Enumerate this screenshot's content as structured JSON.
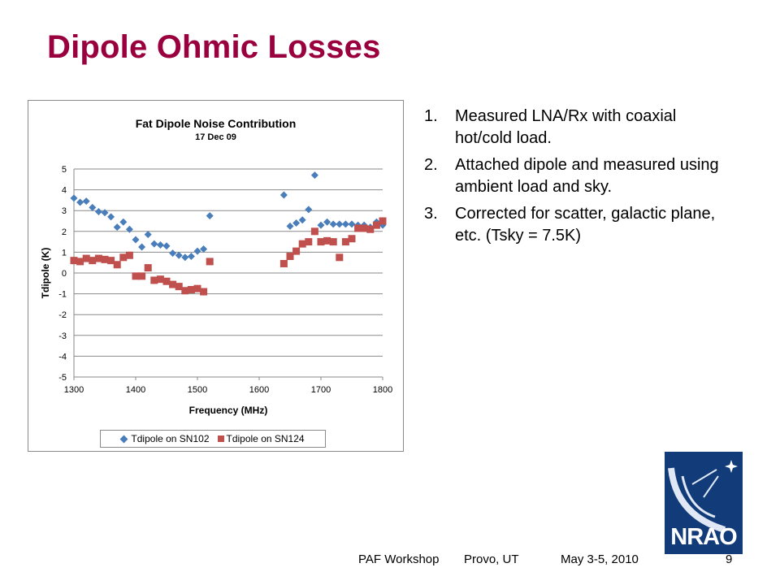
{
  "slide": {
    "title": "Dipole Ohmic Losses",
    "steps": [
      {
        "num": "1.",
        "text": "Measured LNA/Rx with coaxial hot/cold load."
      },
      {
        "num": "2.",
        "text": "Attached dipole and measured using ambient load and sky."
      },
      {
        "num": "3.",
        "text": "Corrected for scatter, galactic plane, etc.  (Tsky = 7.5K)"
      }
    ],
    "footer": {
      "workshop": "PAF Workshop",
      "location": "Provo, UT",
      "date": "May 3-5, 2010",
      "page": "9"
    },
    "logo": {
      "text": "NRAO"
    }
  },
  "chart_data": {
    "type": "scatter",
    "title": "Fat Dipole Noise Contribution",
    "subtitle": "17 Dec 09",
    "xlabel": "Frequency (MHz)",
    "ylabel": "Tdipole  (K)",
    "xlim": [
      1300,
      1800
    ],
    "ylim": [
      -5,
      5
    ],
    "xticks": [
      1300,
      1400,
      1500,
      1600,
      1700,
      1800
    ],
    "yticks": [
      5,
      4,
      3,
      2,
      1,
      0,
      -1,
      -2,
      -3,
      -4,
      -5
    ],
    "grid": "horizontal",
    "legend": "bottom",
    "series": [
      {
        "name": "Tdipole on SN102",
        "color": "#4a7ebb",
        "marker": "diamond",
        "points": [
          [
            1300,
            3.6
          ],
          [
            1310,
            3.4
          ],
          [
            1320,
            3.45
          ],
          [
            1330,
            3.15
          ],
          [
            1340,
            2.95
          ],
          [
            1350,
            2.9
          ],
          [
            1360,
            2.7
          ],
          [
            1370,
            2.2
          ],
          [
            1380,
            2.45
          ],
          [
            1390,
            2.1
          ],
          [
            1400,
            1.6
          ],
          [
            1410,
            1.25
          ],
          [
            1420,
            1.85
          ],
          [
            1430,
            1.4
          ],
          [
            1440,
            1.35
          ],
          [
            1450,
            1.3
          ],
          [
            1460,
            0.95
          ],
          [
            1470,
            0.85
          ],
          [
            1480,
            0.75
          ],
          [
            1490,
            0.8
          ],
          [
            1500,
            1.05
          ],
          [
            1510,
            1.15
          ],
          [
            1520,
            2.75
          ],
          [
            1640,
            3.75
          ],
          [
            1650,
            2.25
          ],
          [
            1660,
            2.4
          ],
          [
            1670,
            2.55
          ],
          [
            1680,
            3.05
          ],
          [
            1690,
            4.7
          ],
          [
            1700,
            2.3
          ],
          [
            1710,
            2.45
          ],
          [
            1720,
            2.35
          ],
          [
            1730,
            2.35
          ],
          [
            1740,
            2.35
          ],
          [
            1750,
            2.35
          ],
          [
            1760,
            2.3
          ],
          [
            1770,
            2.3
          ],
          [
            1780,
            2.2
          ],
          [
            1790,
            2.45
          ],
          [
            1800,
            2.3
          ]
        ]
      },
      {
        "name": "Tdipole on SN124",
        "color": "#c0504d",
        "marker": "square",
        "points": [
          [
            1300,
            0.6
          ],
          [
            1310,
            0.55
          ],
          [
            1320,
            0.7
          ],
          [
            1330,
            0.6
          ],
          [
            1340,
            0.7
          ],
          [
            1350,
            0.65
          ],
          [
            1360,
            0.6
          ],
          [
            1370,
            0.4
          ],
          [
            1380,
            0.75
          ],
          [
            1390,
            0.85
          ],
          [
            1400,
            -0.15
          ],
          [
            1410,
            -0.15
          ],
          [
            1420,
            0.25
          ],
          [
            1430,
            -0.35
          ],
          [
            1440,
            -0.3
          ],
          [
            1450,
            -0.4
          ],
          [
            1460,
            -0.55
          ],
          [
            1470,
            -0.65
          ],
          [
            1480,
            -0.85
          ],
          [
            1490,
            -0.8
          ],
          [
            1500,
            -0.75
          ],
          [
            1510,
            -0.9
          ],
          [
            1520,
            0.55
          ],
          [
            1640,
            0.45
          ],
          [
            1650,
            0.8
          ],
          [
            1660,
            1.05
          ],
          [
            1670,
            1.4
          ],
          [
            1680,
            1.5
          ],
          [
            1690,
            2.0
          ],
          [
            1700,
            1.5
          ],
          [
            1710,
            1.55
          ],
          [
            1720,
            1.5
          ],
          [
            1730,
            0.75
          ],
          [
            1740,
            1.5
          ],
          [
            1750,
            1.65
          ],
          [
            1760,
            2.15
          ],
          [
            1770,
            2.15
          ],
          [
            1780,
            2.1
          ],
          [
            1790,
            2.3
          ],
          [
            1800,
            2.5
          ]
        ]
      }
    ]
  }
}
